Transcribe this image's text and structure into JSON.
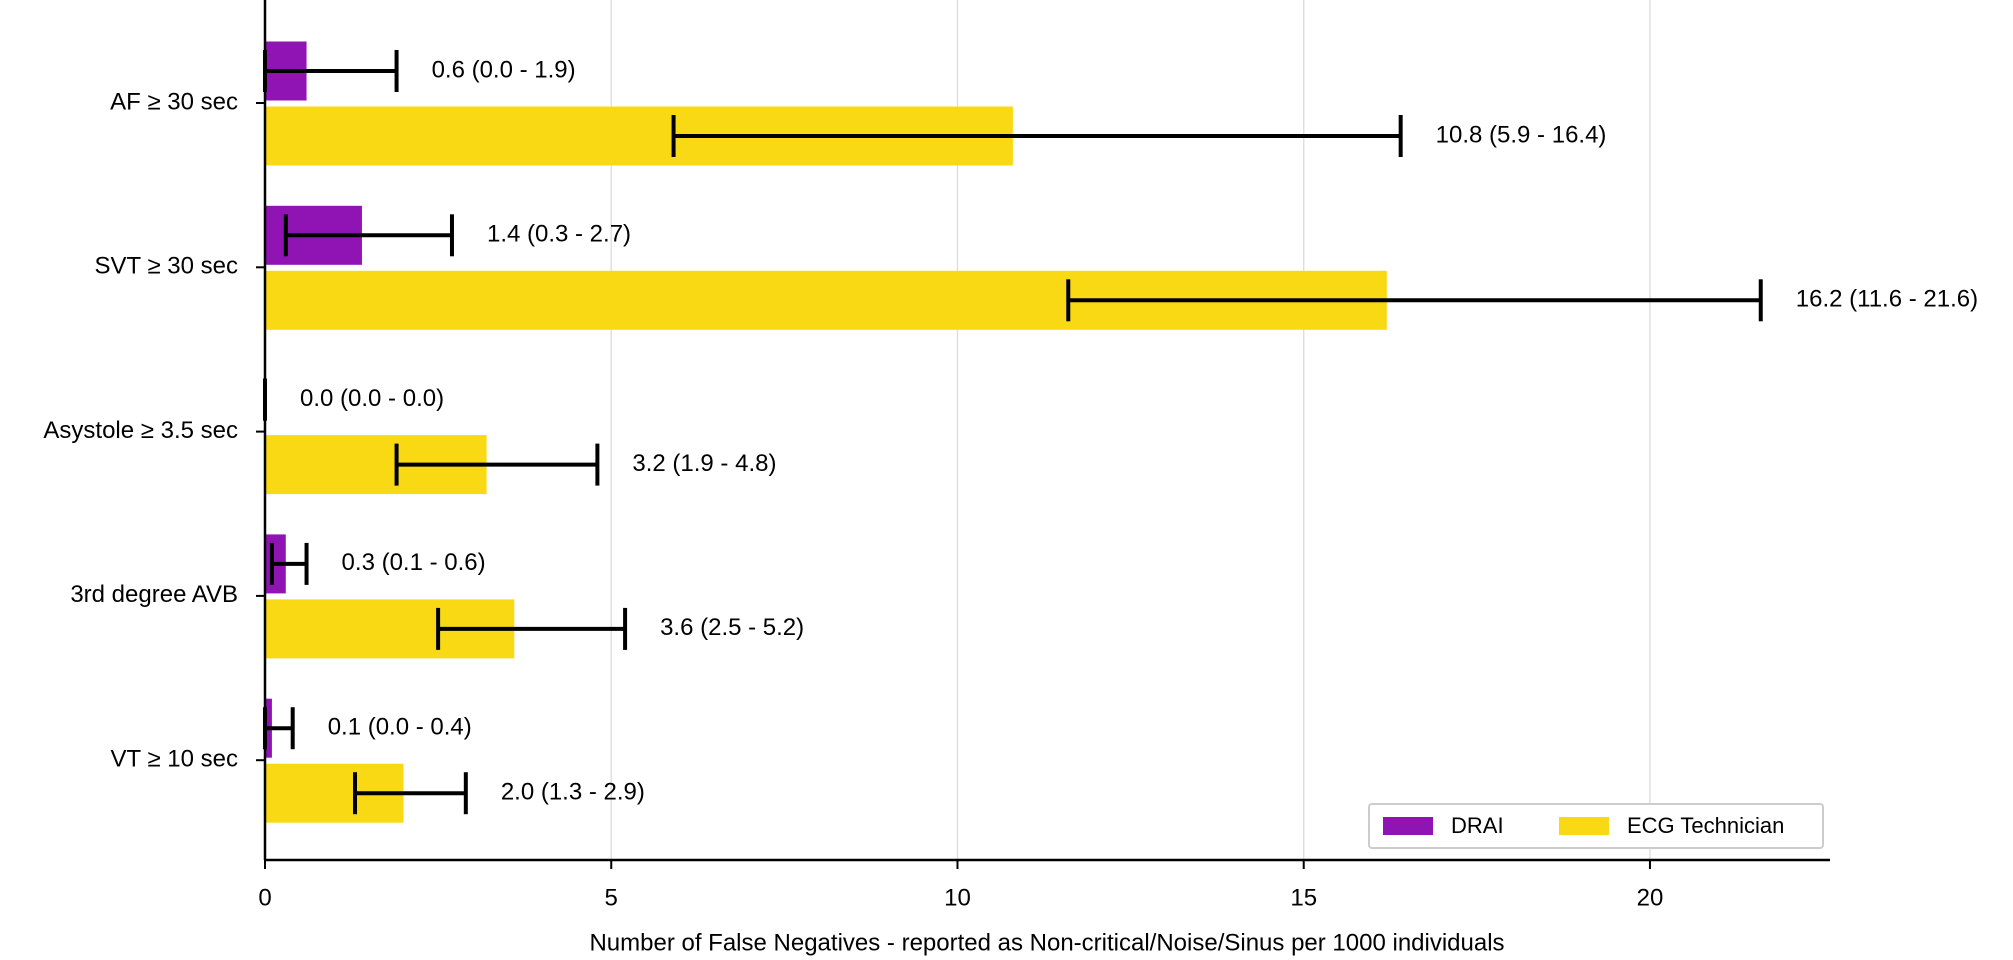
{
  "chart_data": {
    "type": "bar",
    "orientation": "horizontal",
    "x_label": "Number of False Negatives - reported as Non-critical/Noise/Sinus per 1000 individuals",
    "categories": [
      "AF ≥ 30 sec",
      "SVT ≥ 30 sec",
      "Asystole ≥ 3.5 sec",
      "3rd degree AVB",
      "VT ≥ 10 sec"
    ],
    "series": [
      {
        "name": "DRAI",
        "color": "#9014b3",
        "values": [
          0.6,
          1.4,
          0.0,
          0.3,
          0.1
        ],
        "lower": [
          0.0,
          0.3,
          0.0,
          0.1,
          0.0
        ],
        "upper": [
          1.9,
          2.7,
          0.0,
          0.6,
          0.4
        ],
        "value_labels": [
          "0.6 (0.0 - 1.9)",
          "1.4 (0.3 - 2.7)",
          "0.0 (0.0 - 0.0)",
          "0.3 (0.1 - 0.6)",
          "0.1 (0.0 - 0.4)"
        ]
      },
      {
        "name": "ECG Technician",
        "color": "#f8d914",
        "values": [
          10.8,
          16.2,
          3.2,
          3.6,
          2.0
        ],
        "lower": [
          5.9,
          11.6,
          1.9,
          2.5,
          1.3
        ],
        "upper": [
          16.4,
          21.6,
          4.8,
          5.2,
          2.9
        ],
        "value_labels": [
          "10.8 (5.9 - 16.4)",
          "16.2 (11.6 - 21.6)",
          "3.2 (1.9 - 4.8)",
          "3.6 (2.5 - 5.2)",
          "2.0 (1.3 - 2.9)"
        ]
      }
    ],
    "xlim": [
      0,
      22.6
    ],
    "xticks": [
      0,
      5,
      10,
      15,
      20
    ],
    "grid": true,
    "legend": "lower right"
  }
}
